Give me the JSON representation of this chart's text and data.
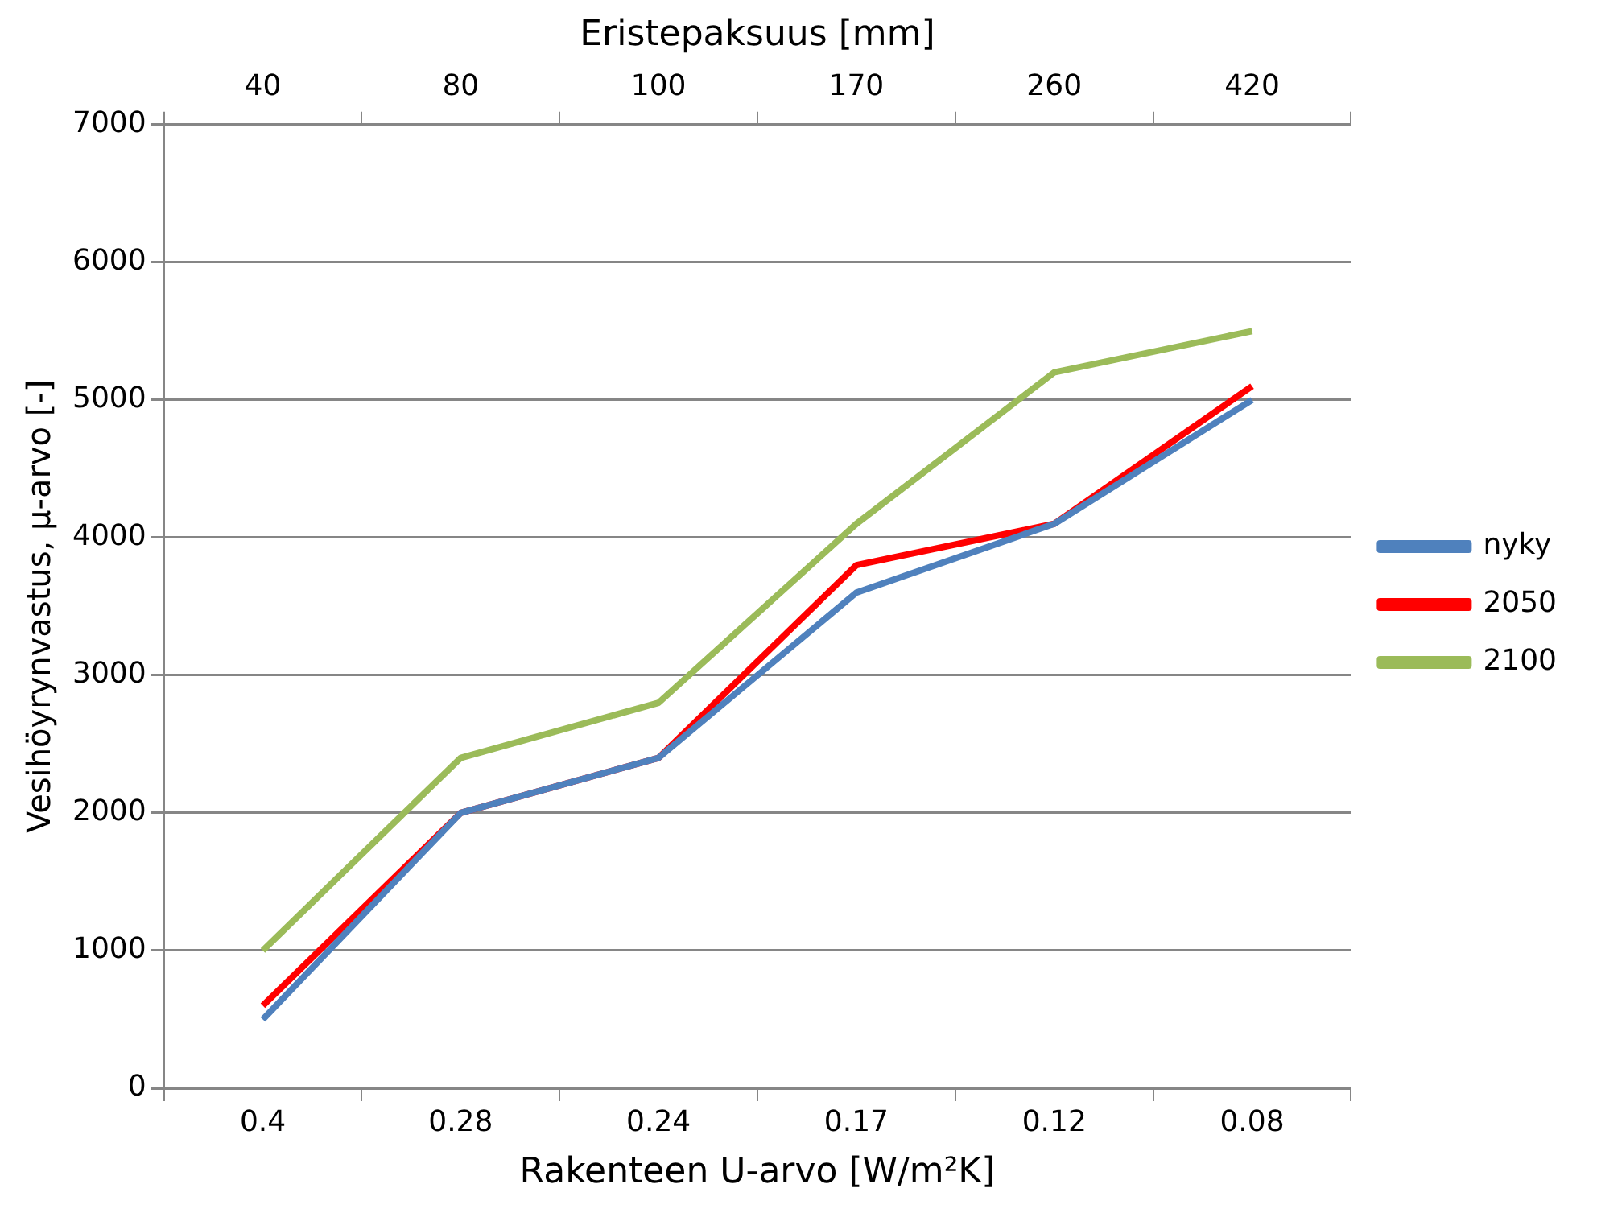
{
  "chart_data": {
    "type": "line",
    "xlabel": "Rakenteen U-arvo [W/m²K]",
    "ylabel": "Vesihöyrynvastus, µ-arvo [-]",
    "x2label": "Eristepaksuus [mm]",
    "categories": [
      "0.4",
      "0.28",
      "0.24",
      "0.17",
      "0.12",
      "0.08"
    ],
    "annotations": [
      "40",
      "80",
      "100",
      "170",
      "260",
      "420"
    ],
    "series": [
      {
        "name": "nyky",
        "color": "#4f81bd",
        "values": [
          500,
          2000,
          2400,
          3600,
          4100,
          5000
        ]
      },
      {
        "name": "2050",
        "color": "#ff0000",
        "values": [
          600,
          2000,
          2400,
          3800,
          4100,
          5100
        ]
      },
      {
        "name": "2100",
        "color": "#9bbb59",
        "values": [
          1000,
          2400,
          2800,
          4100,
          5200,
          5500
        ]
      }
    ],
    "ylim": [
      0,
      7000
    ],
    "yticks": [
      0,
      1000,
      2000,
      3000,
      4000,
      5000,
      6000,
      7000
    ],
    "grid": "y",
    "legend": "right",
    "marker": "none",
    "line_style": "solid"
  }
}
